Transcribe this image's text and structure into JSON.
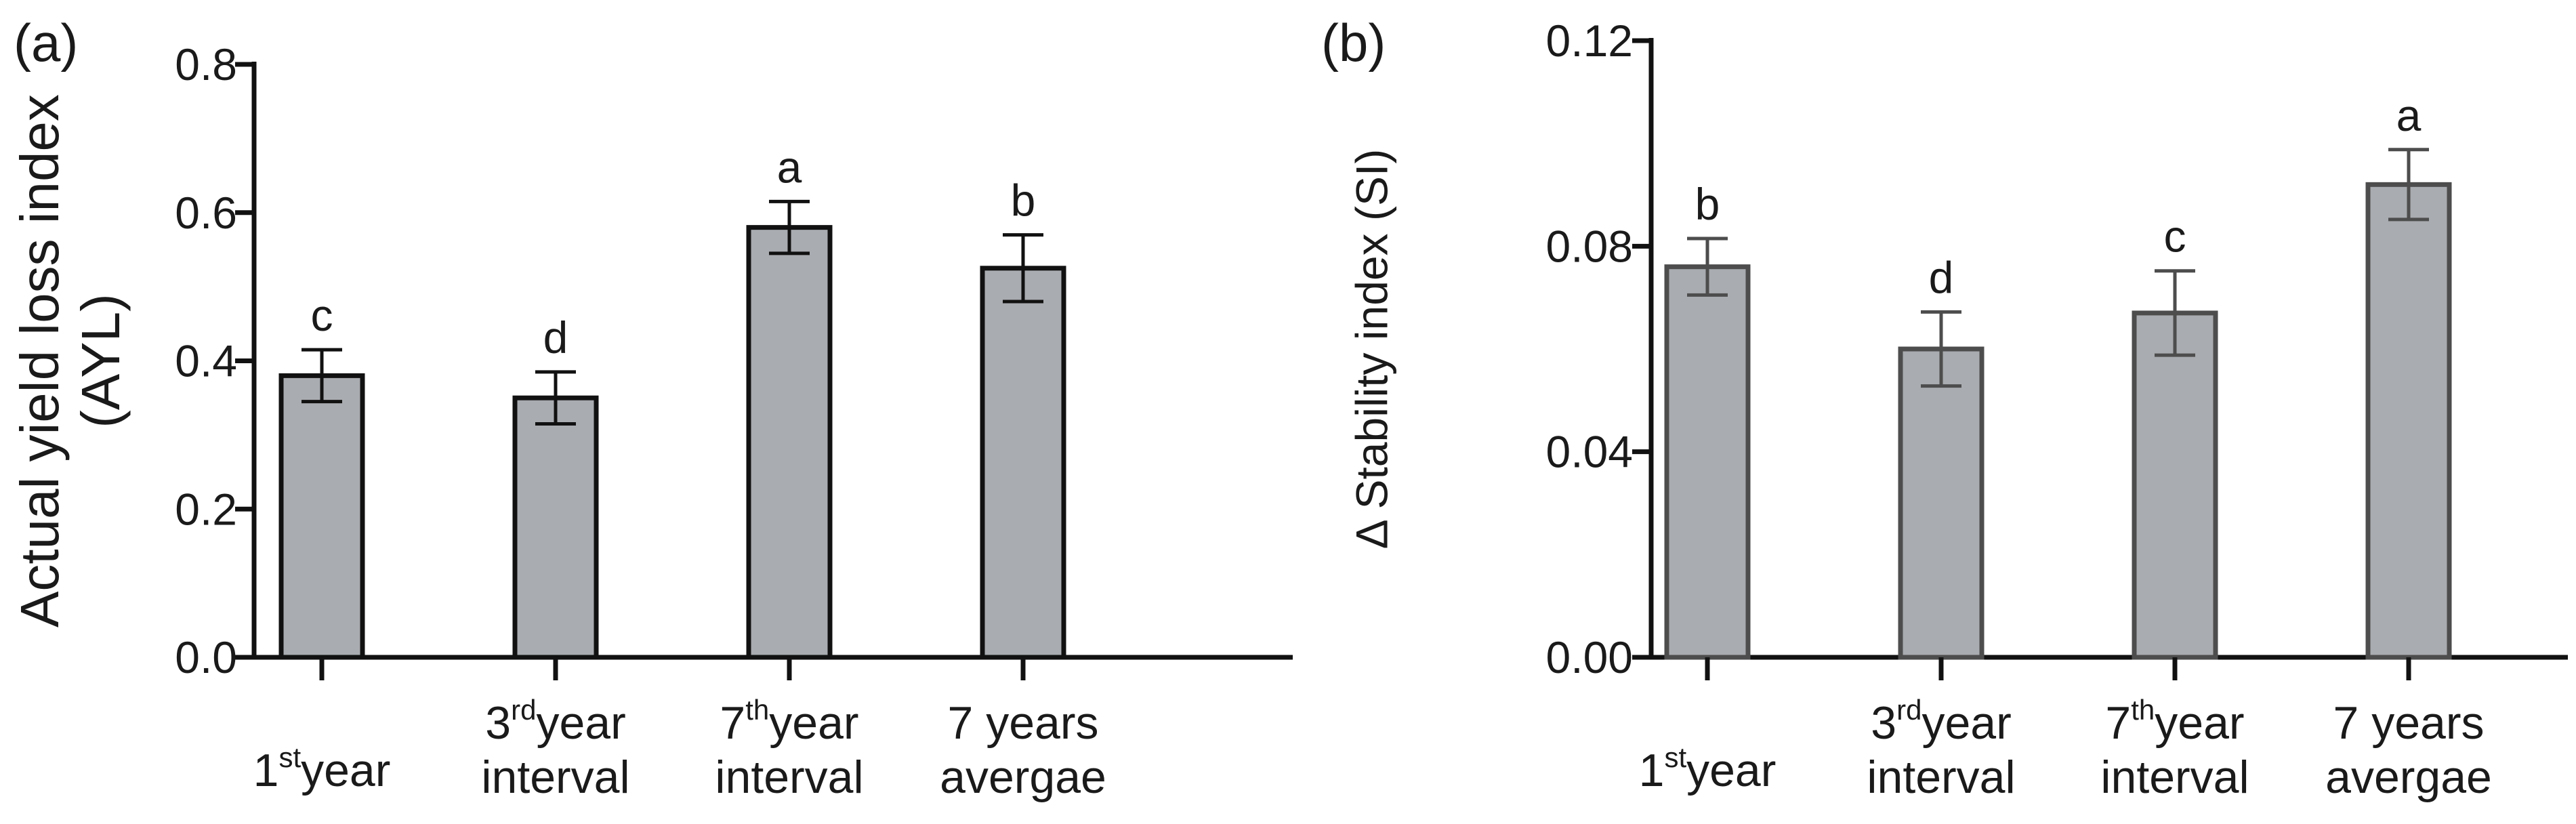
{
  "chart_data": [
    {
      "type": "bar",
      "panel_label": "(a)",
      "ylabel_lines": [
        "Actual yield loss index",
        "(AYL)"
      ],
      "xlabel": "",
      "ylim": [
        0,
        0.8
      ],
      "yticks": [
        "0.0",
        "0.2",
        "0.4",
        "0.6",
        "0.8"
      ],
      "categories": [
        {
          "lines": [
            {
              "pre": "1",
              "sup": "st",
              "post": "year"
            }
          ]
        },
        {
          "lines": [
            {
              "pre": "3",
              "sup": "rd",
              "post": "year"
            },
            {
              "pre": "interval",
              "sup": "",
              "post": ""
            }
          ]
        },
        {
          "lines": [
            {
              "pre": "7",
              "sup": "th",
              "post": "year"
            },
            {
              "pre": "interval",
              "sup": "",
              "post": ""
            }
          ]
        },
        {
          "lines": [
            {
              "pre": "7 years",
              "sup": "",
              "post": ""
            },
            {
              "pre": "avergae",
              "sup": "",
              "post": ""
            }
          ]
        }
      ],
      "values": [
        0.38,
        0.35,
        0.58,
        0.525
      ],
      "errors": [
        0.035,
        0.035,
        0.035,
        0.045
      ],
      "significance": [
        "c",
        "d",
        "a",
        "b"
      ],
      "bar_color": "#a9acb0",
      "edge_color": "#111111"
    },
    {
      "type": "bar",
      "panel_label": "(b)",
      "ylabel_lines": [
        "Δ Stability index (SI)"
      ],
      "xlabel": "",
      "ylim": [
        0,
        0.12
      ],
      "yticks": [
        "0.00",
        "0.04",
        "0.08",
        "0.12"
      ],
      "categories": [
        {
          "lines": [
            {
              "pre": "1",
              "sup": "st",
              "post": "year"
            }
          ]
        },
        {
          "lines": [
            {
              "pre": "3",
              "sup": "rd",
              "post": "year"
            },
            {
              "pre": "interval",
              "sup": "",
              "post": ""
            }
          ]
        },
        {
          "lines": [
            {
              "pre": "7",
              "sup": "th",
              "post": "year"
            },
            {
              "pre": "interval",
              "sup": "",
              "post": ""
            }
          ]
        },
        {
          "lines": [
            {
              "pre": "7 years",
              "sup": "",
              "post": ""
            },
            {
              "pre": "avergae",
              "sup": "",
              "post": ""
            }
          ]
        }
      ],
      "values": [
        0.076,
        0.06,
        0.067,
        0.092
      ],
      "errors": [
        0.0055,
        0.0072,
        0.0082,
        0.0068
      ],
      "significance": [
        "b",
        "d",
        "c",
        "a"
      ],
      "bar_color": "#a9acb0",
      "edge_color": "#4d4d4d"
    }
  ]
}
